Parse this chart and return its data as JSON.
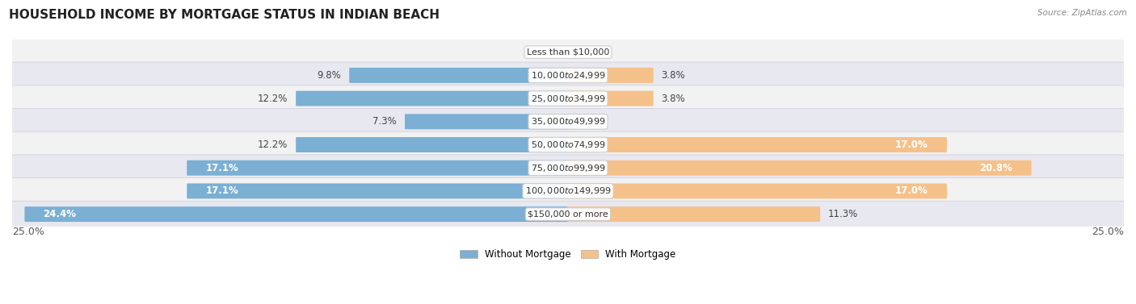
{
  "title": "HOUSEHOLD INCOME BY MORTGAGE STATUS IN INDIAN BEACH",
  "source": "Source: ZipAtlas.com",
  "categories": [
    "Less than $10,000",
    "$10,000 to $24,999",
    "$25,000 to $34,999",
    "$35,000 to $49,999",
    "$50,000 to $74,999",
    "$75,000 to $99,999",
    "$100,000 to $149,999",
    "$150,000 or more"
  ],
  "without_mortgage": [
    0.0,
    9.8,
    12.2,
    7.3,
    12.2,
    17.1,
    17.1,
    24.4
  ],
  "with_mortgage": [
    0.0,
    3.8,
    3.8,
    0.0,
    17.0,
    20.8,
    17.0,
    11.3
  ],
  "without_mortgage_color": "#7bafd4",
  "with_mortgage_color": "#f5c18a",
  "max_value": 25.0,
  "legend_without": "Without Mortgage",
  "legend_with": "With Mortgage",
  "title_fontsize": 11,
  "label_fontsize": 8.5,
  "category_fontsize": 8.0,
  "axis_fontsize": 9,
  "row_bg_even": "#f2f2f2",
  "row_bg_odd": "#e8e8f0",
  "row_border_color": "#ccccdd"
}
